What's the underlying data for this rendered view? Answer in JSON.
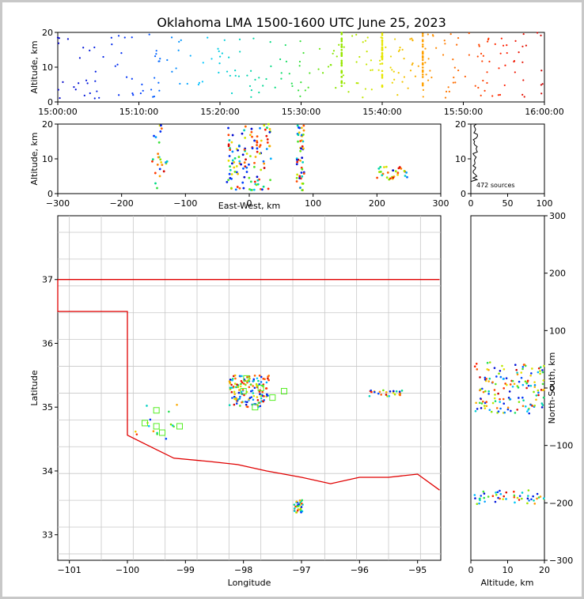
{
  "chart_data": [
    {
      "panel": "time-altitude",
      "type": "scatter",
      "title": "Oklahoma LMA 1500-1600 UTC June 25, 2023",
      "xlabel": "",
      "ylabel": "Altitude, km",
      "x_ticks": [
        "15:00:00",
        "15:10:00",
        "15:20:00",
        "15:30:00",
        "15:40:00",
        "15:50:00",
        "16:00:00"
      ],
      "xlim_minutes": [
        0,
        60
      ],
      "ylim": [
        0,
        20
      ],
      "y_ticks": [
        "0",
        "10",
        "20"
      ],
      "color_encoding": "time (blue → cyan → green → yellow → red)"
    },
    {
      "panel": "east-west-altitude",
      "type": "scatter",
      "xlabel": "East-West, km",
      "ylabel": "Altitude, km",
      "xlim": [
        -300,
        300
      ],
      "ylim": [
        0,
        20
      ],
      "x_ticks": [
        "−300",
        "−200",
        "−100",
        "0",
        "100",
        "200",
        "300"
      ],
      "y_ticks": [
        "0",
        "10",
        "20"
      ]
    },
    {
      "panel": "altitude-histogram",
      "type": "line",
      "xlim": [
        0,
        100
      ],
      "ylim": [
        0,
        20
      ],
      "x_ticks": [
        "0",
        "50",
        "100"
      ],
      "y_ticks": [
        "0",
        "10",
        "20"
      ],
      "annotation": "472 sources"
    },
    {
      "panel": "plan-view-map",
      "type": "scatter",
      "xlabel": "Longitude",
      "ylabel": "Latitude",
      "xlim": [
        -101.2,
        -94.6
      ],
      "ylim": [
        32.6,
        38.0
      ],
      "x_ticks": [
        "−101",
        "−100",
        "−99",
        "−98",
        "−97",
        "−96",
        "−95"
      ],
      "y_ticks": [
        "33",
        "34",
        "35",
        "36",
        "37"
      ],
      "station_marker": "green open squares"
    },
    {
      "panel": "altitude-north-south",
      "type": "scatter",
      "xlabel": "Altitude, km",
      "ylabel": "North-South, km",
      "xlim": [
        0,
        20
      ],
      "ylim": [
        -300,
        300
      ],
      "x_ticks": [
        "0",
        "10",
        "20"
      ],
      "y_ticks": [
        "−300",
        "−200",
        "−100",
        "0",
        "100",
        "200",
        "300"
      ]
    }
  ],
  "colors": {
    "boundary": "#e00000",
    "counties": "#c8c8c8",
    "station": "#55ee22",
    "frame": "#c8c8c8"
  }
}
